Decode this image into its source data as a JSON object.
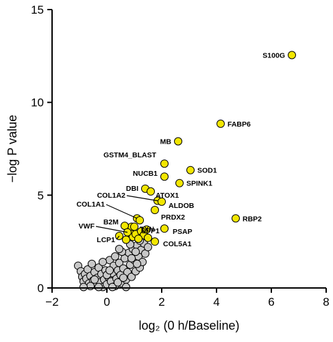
{
  "chart_data": {
    "type": "scatter",
    "title": "",
    "xlabel": "log₂ (0 h/Baseline)",
    "ylabel": "−log P value",
    "xlim": [
      -2,
      8
    ],
    "ylim": [
      0,
      15
    ],
    "xticks": [
      -2,
      0,
      2,
      4,
      6,
      8
    ],
    "yticks": [
      0,
      5,
      10,
      15
    ],
    "xtick_labels": [
      "−2",
      "0",
      "2",
      "4",
      "6",
      "8"
    ],
    "ytick_labels": [
      "0",
      "5",
      "10",
      "15"
    ],
    "grid": false,
    "colors": {
      "highlight": "#f2e600",
      "background": "#c8c8c8",
      "edge": "#000000"
    },
    "highlighted": [
      {
        "label": "S100G",
        "x": 6.75,
        "y": 12.55
      },
      {
        "label": "FABP6",
        "x": 4.15,
        "y": 8.85
      },
      {
        "label": "MB",
        "x": 2.6,
        "y": 7.9
      },
      {
        "label": "GSTM4_BLAST",
        "x": 2.1,
        "y": 6.7
      },
      {
        "label": "SOD1",
        "x": 3.05,
        "y": 6.35
      },
      {
        "label": "NUCB1",
        "x": 2.1,
        "y": 6.0
      },
      {
        "label": "SPINK1",
        "x": 2.65,
        "y": 5.65
      },
      {
        "label": "DBI",
        "x": 1.4,
        "y": 5.35
      },
      {
        "label": "ATOX1",
        "x": 1.6,
        "y": 5.2
      },
      {
        "label": "COL1A2",
        "x": 1.85,
        "y": 4.7
      },
      {
        "label": "ALDOB",
        "x": 2.0,
        "y": 4.65
      },
      {
        "label": "PRDX2",
        "x": 1.75,
        "y": 4.2
      },
      {
        "label": "COL1A1",
        "x": 1.1,
        "y": 3.75
      },
      {
        "label": "SPP1",
        "x": 1.2,
        "y": 3.65
      },
      {
        "label": "RBP2",
        "x": 4.7,
        "y": 3.75
      },
      {
        "label": "B2M",
        "x": 0.65,
        "y": 3.35
      },
      {
        "label": "TXN",
        "x": 1.0,
        "y": 3.3
      },
      {
        "label": "VWF",
        "x": 0.75,
        "y": 3.0
      },
      {
        "label": "PSAP",
        "x": 2.1,
        "y": 3.2
      },
      {
        "label": "LCP1",
        "x": 0.45,
        "y": 2.8
      },
      {
        "label": "COL5A1",
        "x": 1.75,
        "y": 2.5
      }
    ],
    "unlabeled_highlighted": [
      {
        "x": 0.85,
        "y": 2.95
      },
      {
        "x": 0.95,
        "y": 2.75
      },
      {
        "x": 1.05,
        "y": 2.9
      },
      {
        "x": 1.25,
        "y": 3.05
      },
      {
        "x": 1.35,
        "y": 2.85
      },
      {
        "x": 1.5,
        "y": 2.7
      },
      {
        "x": 0.7,
        "y": 2.6
      },
      {
        "x": 1.15,
        "y": 2.65
      },
      {
        "x": 0.9,
        "y": 3.3
      },
      {
        "x": 1.45,
        "y": 3.15
      }
    ],
    "background_points": [
      {
        "x": -1.05,
        "y": 1.2
      },
      {
        "x": -0.95,
        "y": 0.9
      },
      {
        "x": -0.9,
        "y": 0.6
      },
      {
        "x": -0.85,
        "y": 0.35
      },
      {
        "x": -0.8,
        "y": 0.75
      },
      {
        "x": -0.75,
        "y": 0.5
      },
      {
        "x": -0.7,
        "y": 1.0
      },
      {
        "x": -0.65,
        "y": 0.25
      },
      {
        "x": -0.6,
        "y": 0.65
      },
      {
        "x": -0.55,
        "y": 1.3
      },
      {
        "x": -0.5,
        "y": 0.4
      },
      {
        "x": -0.45,
        "y": 0.85
      },
      {
        "x": -0.4,
        "y": 0.15
      },
      {
        "x": -0.35,
        "y": 0.55
      },
      {
        "x": -0.3,
        "y": 1.1
      },
      {
        "x": -0.25,
        "y": 0.3
      },
      {
        "x": -0.2,
        "y": 0.75
      },
      {
        "x": -0.15,
        "y": 0.05
      },
      {
        "x": -0.1,
        "y": 0.45
      },
      {
        "x": -0.05,
        "y": 0.95
      },
      {
        "x": 0.0,
        "y": 0.2
      },
      {
        "x": 0.05,
        "y": 0.6
      },
      {
        "x": 0.1,
        "y": 1.5
      },
      {
        "x": 0.15,
        "y": 0.35
      },
      {
        "x": 0.2,
        "y": 0.8
      },
      {
        "x": 0.25,
        "y": 1.2
      },
      {
        "x": 0.3,
        "y": 0.1
      },
      {
        "x": 0.35,
        "y": 0.5
      },
      {
        "x": 0.4,
        "y": 0.95
      },
      {
        "x": 0.45,
        "y": 1.35
      },
      {
        "x": 0.5,
        "y": 0.7
      },
      {
        "x": 0.55,
        "y": 0.25
      },
      {
        "x": 0.6,
        "y": 1.05
      },
      {
        "x": 0.65,
        "y": 1.6
      },
      {
        "x": 0.7,
        "y": 0.45
      },
      {
        "x": 0.75,
        "y": 0.85
      },
      {
        "x": 0.8,
        "y": 1.9
      },
      {
        "x": 0.85,
        "y": 1.25
      },
      {
        "x": 0.9,
        "y": 0.6
      },
      {
        "x": 0.95,
        "y": 2.1
      },
      {
        "x": 1.0,
        "y": 1.5
      },
      {
        "x": 1.05,
        "y": 0.9
      },
      {
        "x": 1.1,
        "y": 2.3
      },
      {
        "x": 1.15,
        "y": 1.7
      },
      {
        "x": 1.2,
        "y": 1.1
      },
      {
        "x": 1.25,
        "y": 2.05
      },
      {
        "x": 1.3,
        "y": 1.4
      },
      {
        "x": 1.35,
        "y": 2.4
      },
      {
        "x": 1.4,
        "y": 1.85
      },
      {
        "x": 1.5,
        "y": 2.2
      },
      {
        "x": -0.3,
        "y": 0.05
      },
      {
        "x": 0.0,
        "y": 0.7
      },
      {
        "x": 0.2,
        "y": 0.05
      },
      {
        "x": -0.6,
        "y": 0.1
      },
      {
        "x": 0.4,
        "y": 0.3
      },
      {
        "x": -0.15,
        "y": 1.4
      },
      {
        "x": 0.7,
        "y": 0.05
      },
      {
        "x": 0.3,
        "y": 1.7
      },
      {
        "x": 0.55,
        "y": 1.95
      },
      {
        "x": 0.9,
        "y": 1.6
      },
      {
        "x": 1.05,
        "y": 1.95
      },
      {
        "x": 1.2,
        "y": 2.55
      },
      {
        "x": -0.85,
        "y": 0.05
      },
      {
        "x": 0.1,
        "y": 0.95
      },
      {
        "x": 0.6,
        "y": 0.55
      },
      {
        "x": -0.45,
        "y": 0.45
      },
      {
        "x": 0.85,
        "y": 2.35
      },
      {
        "x": 1.1,
        "y": 1.3
      },
      {
        "x": 0.45,
        "y": 2.1
      }
    ]
  }
}
